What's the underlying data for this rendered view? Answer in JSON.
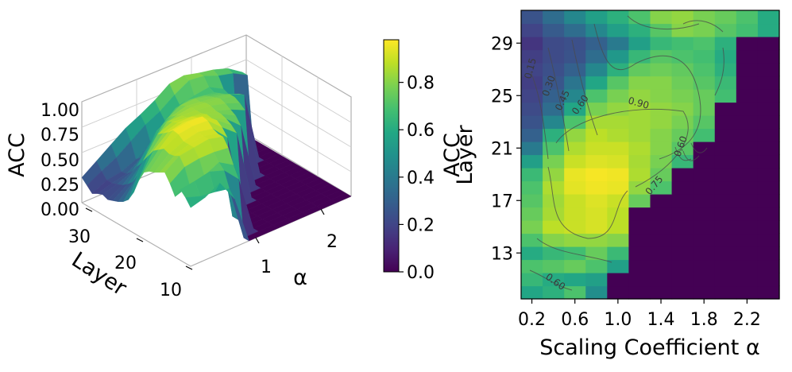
{
  "chart_data": [
    {
      "type": "surface3d",
      "title": "",
      "xlabel": "α",
      "ylabel": "Layer",
      "zlabel": "ACC",
      "x_ticks": [
        "1",
        "2"
      ],
      "y_ticks": [
        "30",
        "20",
        "10"
      ],
      "z_ticks": [
        "0.00",
        "0.25",
        "0.50",
        "0.75",
        "1.00"
      ],
      "x_range": [
        0.2,
        2.4
      ],
      "y_range": [
        10,
        31
      ],
      "z_range": [
        0,
        1
      ],
      "grid": true,
      "colormap": "viridis",
      "colorbar": {
        "ticks": [
          "0.0",
          "0.2",
          "0.4",
          "0.6",
          "0.8"
        ],
        "range": [
          0.0,
          0.98
        ]
      }
    },
    {
      "type": "heatmap",
      "title": "",
      "xlabel": "Scaling Coefficient α",
      "ylabel": "Layer",
      "colorbar_label": "ACC",
      "colormap": "viridis",
      "x": [
        0.2,
        0.4,
        0.6,
        0.8,
        1.0,
        1.2,
        1.4,
        1.6,
        1.8,
        2.0,
        2.2,
        2.4
      ],
      "y": [
        10,
        11,
        12,
        13,
        14,
        15,
        16,
        17,
        18,
        19,
        20,
        21,
        22,
        23,
        24,
        25,
        26,
        27,
        28,
        29,
        30,
        31
      ],
      "x_ticks": [
        "0.2",
        "0.6",
        "1.0",
        "1.4",
        "1.8",
        "2.2"
      ],
      "y_ticks": [
        "13",
        "17",
        "21",
        "25",
        "29"
      ],
      "contour_labels": [
        "0.15",
        "0.30",
        "0.45",
        "0.60",
        "0.90",
        "0.75",
        "0.60",
        "0.60"
      ],
      "values": [
        [
          0.58,
          0.62,
          0.7,
          0.48,
          0.0,
          0.0,
          0.0,
          0.0,
          0.0,
          0.0,
          0.0,
          0.0
        ],
        [
          0.65,
          0.6,
          0.58,
          0.55,
          0.0,
          0.0,
          0.0,
          0.0,
          0.0,
          0.0,
          0.0,
          0.0
        ],
        [
          0.7,
          0.72,
          0.75,
          0.7,
          0.55,
          0.0,
          0.0,
          0.0,
          0.0,
          0.0,
          0.0,
          0.0
        ],
        [
          0.6,
          0.65,
          0.68,
          0.75,
          0.66,
          0.0,
          0.0,
          0.0,
          0.0,
          0.0,
          0.0,
          0.0
        ],
        [
          0.7,
          0.8,
          0.82,
          0.82,
          0.8,
          0.0,
          0.0,
          0.0,
          0.0,
          0.0,
          0.0,
          0.0
        ],
        [
          0.78,
          0.88,
          0.9,
          0.92,
          0.88,
          0.0,
          0.0,
          0.0,
          0.0,
          0.0,
          0.0,
          0.0
        ],
        [
          0.75,
          0.85,
          0.9,
          0.92,
          0.88,
          0.0,
          0.0,
          0.0,
          0.0,
          0.0,
          0.0,
          0.0
        ],
        [
          0.72,
          0.84,
          0.9,
          0.93,
          0.9,
          0.75,
          0.0,
          0.0,
          0.0,
          0.0,
          0.0,
          0.0
        ],
        [
          0.7,
          0.86,
          0.94,
          0.96,
          0.95,
          0.82,
          0.7,
          0.0,
          0.0,
          0.0,
          0.0,
          0.0
        ],
        [
          0.66,
          0.82,
          0.95,
          0.97,
          0.96,
          0.86,
          0.75,
          0.0,
          0.0,
          0.0,
          0.0,
          0.0
        ],
        [
          0.55,
          0.78,
          0.9,
          0.93,
          0.92,
          0.85,
          0.78,
          0.65,
          0.0,
          0.0,
          0.0,
          0.0
        ],
        [
          0.4,
          0.7,
          0.86,
          0.9,
          0.9,
          0.86,
          0.8,
          0.72,
          0.0,
          0.0,
          0.0,
          0.0
        ],
        [
          0.3,
          0.62,
          0.82,
          0.88,
          0.86,
          0.84,
          0.8,
          0.75,
          0.68,
          0.0,
          0.0,
          0.0
        ],
        [
          0.25,
          0.45,
          0.7,
          0.85,
          0.85,
          0.84,
          0.82,
          0.78,
          0.72,
          0.0,
          0.0,
          0.0
        ],
        [
          0.22,
          0.35,
          0.58,
          0.78,
          0.82,
          0.84,
          0.82,
          0.8,
          0.75,
          0.0,
          0.0,
          0.0
        ],
        [
          0.2,
          0.3,
          0.45,
          0.7,
          0.78,
          0.82,
          0.8,
          0.78,
          0.75,
          0.68,
          0.0,
          0.0
        ],
        [
          0.18,
          0.26,
          0.38,
          0.58,
          0.72,
          0.8,
          0.8,
          0.76,
          0.72,
          0.66,
          0.0,
          0.0
        ],
        [
          0.2,
          0.24,
          0.3,
          0.45,
          0.62,
          0.74,
          0.76,
          0.74,
          0.7,
          0.62,
          0.0,
          0.0
        ],
        [
          0.18,
          0.22,
          0.25,
          0.35,
          0.52,
          0.65,
          0.72,
          0.7,
          0.68,
          0.6,
          0.0,
          0.0
        ],
        [
          0.15,
          0.22,
          0.24,
          0.3,
          0.4,
          0.55,
          0.65,
          0.68,
          0.7,
          0.62,
          0.0,
          0.0
        ],
        [
          0.2,
          0.28,
          0.35,
          0.45,
          0.55,
          0.62,
          0.72,
          0.8,
          0.78,
          0.72,
          0.68,
          0.6
        ],
        [
          0.25,
          0.35,
          0.45,
          0.55,
          0.62,
          0.7,
          0.8,
          0.82,
          0.78,
          0.75,
          0.7,
          0.6
        ]
      ]
    }
  ]
}
